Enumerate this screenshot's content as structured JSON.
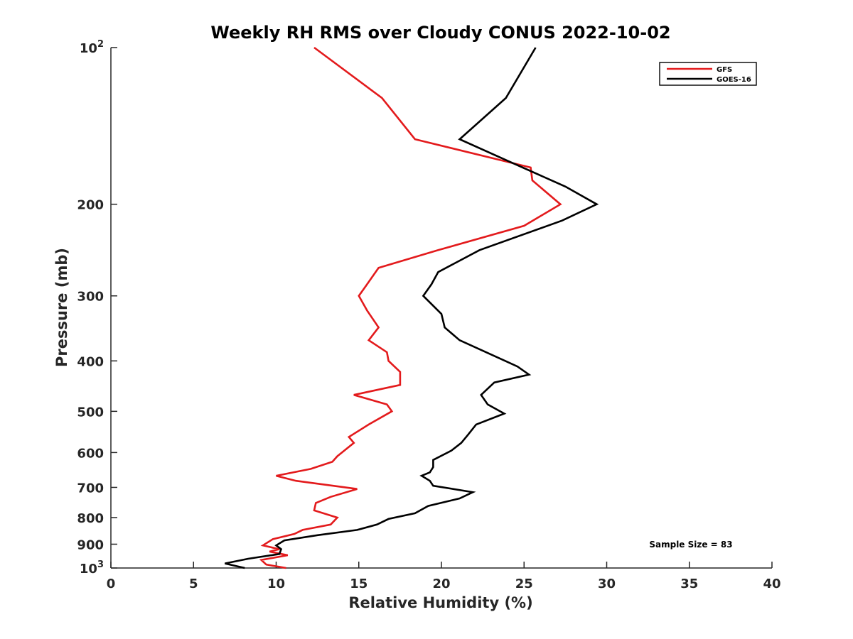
{
  "chart_data": {
    "type": "line",
    "title": "Weekly RH RMS over Cloudy CONUS 2022-10-02",
    "xlabel": "Relative Humidity (%)",
    "ylabel": "Pressure (mb)",
    "xlim": [
      0,
      40
    ],
    "ylim": [
      100,
      1000
    ],
    "y_scale": "log",
    "y_reversed": true,
    "grid": false,
    "x_ticks": [
      0,
      5,
      10,
      15,
      20,
      25,
      30,
      35,
      40
    ],
    "x_tick_labels": [
      "0",
      "5",
      "10",
      "15",
      "20",
      "25",
      "30",
      "35",
      "40"
    ],
    "y_ticks": [
      100,
      200,
      300,
      400,
      500,
      600,
      700,
      800,
      900,
      1000
    ],
    "y_tick_labels": [
      {
        "base": "10",
        "exp": "2"
      },
      {
        "base": "200",
        "exp": ""
      },
      {
        "base": "300",
        "exp": ""
      },
      {
        "base": "400",
        "exp": ""
      },
      {
        "base": "500",
        "exp": ""
      },
      {
        "base": "600",
        "exp": ""
      },
      {
        "base": "700",
        "exp": ""
      },
      {
        "base": "800",
        "exp": ""
      },
      {
        "base": "900",
        "exp": ""
      },
      {
        "base": "10",
        "exp": "3"
      }
    ],
    "legend_position": "top-right",
    "series": [
      {
        "name": "GFS",
        "color": "#e31a1c",
        "points": [
          [
            12.3,
            100
          ],
          [
            16.4,
            125
          ],
          [
            18.4,
            150
          ],
          [
            25.4,
            170
          ],
          [
            25.5,
            180
          ],
          [
            27.2,
            200
          ],
          [
            25.0,
            220
          ],
          [
            19.8,
            245
          ],
          [
            16.2,
            265
          ],
          [
            15.5,
            285
          ],
          [
            15.0,
            300
          ],
          [
            15.5,
            320
          ],
          [
            16.2,
            345
          ],
          [
            15.6,
            365
          ],
          [
            16.7,
            385
          ],
          [
            16.8,
            400
          ],
          [
            17.5,
            420
          ],
          [
            17.5,
            445
          ],
          [
            14.7,
            465
          ],
          [
            16.7,
            485
          ],
          [
            17.0,
            500
          ],
          [
            15.6,
            530
          ],
          [
            14.4,
            560
          ],
          [
            14.7,
            575
          ],
          [
            13.7,
            610
          ],
          [
            13.4,
            625
          ],
          [
            12.1,
            645
          ],
          [
            10.0,
            665
          ],
          [
            11.2,
            680
          ],
          [
            14.9,
            705
          ],
          [
            13.3,
            730
          ],
          [
            12.4,
            750
          ],
          [
            12.3,
            775
          ],
          [
            13.7,
            800
          ],
          [
            13.3,
            825
          ],
          [
            11.6,
            845
          ],
          [
            11.1,
            860
          ],
          [
            9.8,
            880
          ],
          [
            9.2,
            905
          ],
          [
            10.2,
            920
          ],
          [
            9.6,
            930
          ],
          [
            10.7,
            945
          ],
          [
            9.1,
            965
          ],
          [
            9.4,
            985
          ],
          [
            10.6,
            1000
          ]
        ]
      },
      {
        "name": "GOES-16",
        "color": "#000000",
        "points": [
          [
            25.7,
            100
          ],
          [
            23.9,
            125
          ],
          [
            21.1,
            150
          ],
          [
            24.0,
            165
          ],
          [
            27.5,
            185
          ],
          [
            29.4,
            200
          ],
          [
            27.3,
            215
          ],
          [
            22.3,
            245
          ],
          [
            19.8,
            270
          ],
          [
            19.4,
            285
          ],
          [
            18.9,
            300
          ],
          [
            20.0,
            325
          ],
          [
            20.2,
            345
          ],
          [
            21.1,
            365
          ],
          [
            23.1,
            390
          ],
          [
            24.6,
            410
          ],
          [
            25.3,
            425
          ],
          [
            23.2,
            440
          ],
          [
            22.4,
            465
          ],
          [
            22.8,
            485
          ],
          [
            23.8,
            505
          ],
          [
            22.1,
            530
          ],
          [
            21.6,
            555
          ],
          [
            21.2,
            575
          ],
          [
            20.6,
            595
          ],
          [
            19.5,
            620
          ],
          [
            19.5,
            640
          ],
          [
            19.3,
            655
          ],
          [
            18.8,
            665
          ],
          [
            19.3,
            680
          ],
          [
            19.5,
            695
          ],
          [
            21.9,
            715
          ],
          [
            21.1,
            735
          ],
          [
            19.2,
            760
          ],
          [
            18.4,
            785
          ],
          [
            16.8,
            805
          ],
          [
            16.1,
            825
          ],
          [
            14.9,
            845
          ],
          [
            12.5,
            865
          ],
          [
            10.5,
            885
          ],
          [
            10.0,
            905
          ],
          [
            10.3,
            920
          ],
          [
            10.2,
            940
          ],
          [
            8.3,
            960
          ],
          [
            6.9,
            980
          ],
          [
            8.1,
            1000
          ]
        ]
      }
    ],
    "annotations": [
      "Sample Size = 83"
    ]
  }
}
